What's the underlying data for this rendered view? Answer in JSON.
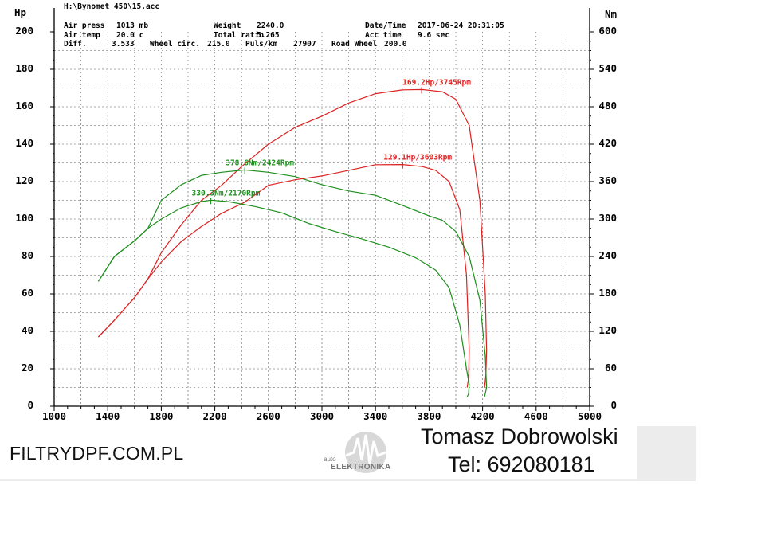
{
  "header": {
    "file": "H:\\Bynomet 450\\15.acc",
    "rows": [
      [
        "Air press",
        "1013 mb",
        "Weight",
        "2240.0",
        "Date/Time",
        "2017-06-24 20:31:05"
      ],
      [
        "Air temp",
        "20.0 c",
        "Total ratio",
        "5.265",
        "Acc time",
        "9.6 sec"
      ]
    ],
    "row3": {
      "diff_label": "Diff.",
      "diff_value": "3.533",
      "wheel_label": "Wheel circ.",
      "wheel_value": "215.0",
      "puls_label": "Puls/km",
      "puls_value": "27907",
      "road_label": "Road Wheel",
      "road_value": "200.0"
    }
  },
  "chart_data": {
    "type": "line",
    "left_axis_label": "Hp",
    "right_axis_label": "Nm",
    "x_ticks": [
      "1000",
      "1400",
      "1800",
      "2200",
      "2600",
      "3000",
      "3400",
      "3800",
      "4200",
      "4600",
      "5000"
    ],
    "y_left_ticks": [
      "0",
      "20",
      "40",
      "60",
      "80",
      "100",
      "120",
      "140",
      "160",
      "180",
      "200"
    ],
    "y_right_ticks": [
      "0",
      "60",
      "120",
      "180",
      "240",
      "300",
      "360",
      "420",
      "480",
      "540",
      "600"
    ],
    "xlim": [
      1000,
      5000
    ],
    "ylim_left": [
      0,
      200
    ],
    "ylim_right": [
      0,
      600
    ],
    "grid": true,
    "colors": {
      "power": "#dd2222",
      "torque": "#1f8f1f"
    },
    "series": [
      {
        "axis": "left",
        "color": "power",
        "x": [
          1330,
          1450,
          1600,
          1700,
          1800,
          1950,
          2100,
          2250,
          2400,
          2600,
          2800,
          3000,
          3200,
          3400,
          3600,
          3745,
          3900,
          4000,
          4100,
          4180,
          4220,
          4230,
          4225,
          4215
        ],
        "y": [
          37,
          46,
          58,
          68,
          82,
          97,
          110,
          118,
          128,
          140,
          149,
          155,
          162,
          167,
          169,
          169.2,
          168,
          164,
          150,
          110,
          60,
          30,
          17,
          10
        ]
      },
      {
        "axis": "right",
        "color": "torque",
        "x": [
          1330,
          1450,
          1600,
          1700,
          1800,
          1950,
          2100,
          2250,
          2424,
          2600,
          2800,
          3000,
          3200,
          3400,
          3600,
          3800,
          3900,
          4000,
          4100,
          4180,
          4220,
          4230,
          4225,
          4215
        ],
        "y": [
          200,
          240,
          265,
          285,
          330,
          355,
          370,
          375,
          378.6,
          375,
          368,
          355,
          345,
          338,
          322,
          305,
          298,
          280,
          240,
          170,
          80,
          30,
          25,
          15
        ]
      },
      {
        "axis": "left",
        "color": "power",
        "x": [
          1330,
          1450,
          1600,
          1700,
          1800,
          1950,
          2100,
          2250,
          2424,
          2600,
          2800,
          3000,
          3200,
          3400,
          3603,
          3750,
          3850,
          3950,
          4030,
          4080,
          4100,
          4095,
          4085
        ],
        "y": [
          37,
          46,
          58,
          68,
          77,
          88,
          96,
          103,
          109,
          118,
          121,
          123,
          126,
          129,
          129.1,
          128,
          126,
          120,
          105,
          70,
          30,
          15,
          10
        ]
      },
      {
        "axis": "right",
        "color": "torque",
        "x": [
          1330,
          1450,
          1600,
          1700,
          1800,
          1950,
          2100,
          2170,
          2300,
          2500,
          2700,
          2900,
          3100,
          3300,
          3500,
          3700,
          3850,
          3950,
          4030,
          4080,
          4100,
          4095,
          4085
        ],
        "y": [
          200,
          240,
          265,
          285,
          300,
          318,
          328,
          330.3,
          328,
          320,
          310,
          293,
          280,
          268,
          255,
          238,
          218,
          190,
          130,
          60,
          35,
          20,
          15
        ]
      }
    ],
    "annotations": [
      {
        "text": "169.2Hp/3745Rpm",
        "x": 3745,
        "y": 169.2,
        "axis": "left",
        "color": "power"
      },
      {
        "text": "129.1Hp/3603Rpm",
        "x": 3603,
        "y": 129.1,
        "axis": "left",
        "color": "power"
      },
      {
        "text": "378.6Nm/2424Rpm",
        "x": 2424,
        "y": 378.6,
        "axis": "right",
        "color": "torque"
      },
      {
        "text": "330.3Nm/2170Rpm",
        "x": 2170,
        "y": 330.3,
        "axis": "right",
        "color": "torque"
      }
    ]
  },
  "footer": {
    "website": "FILTRYDPF.COM.PL",
    "logo_small": "auto",
    "logo_big": "ELEKTRONIKA",
    "name": "Tomasz Dobrowolski",
    "phone": "Tel: 692080181"
  }
}
